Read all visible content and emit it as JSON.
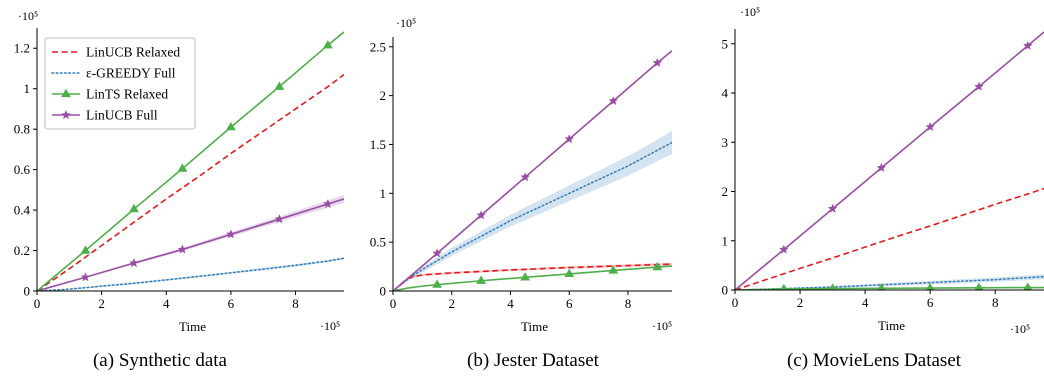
{
  "chart_data": [
    {
      "type": "line",
      "caption": "(a) Synthetic data",
      "xlabel": "Time",
      "x_scale_label": "·10⁵",
      "y_scale_label": "·10⁵",
      "xlim": [
        0,
        9.5
      ],
      "ylim": [
        0,
        1.3
      ],
      "x_ticks": [
        0,
        2,
        4,
        6,
        8
      ],
      "y_ticks": [
        0,
        0.2,
        0.4,
        0.6,
        0.8,
        1,
        1.2
      ],
      "y_tick_labels": [
        "0",
        "0.2",
        "0.4",
        "0.6",
        "0.8",
        "1",
        "1.2"
      ],
      "legend": "top-left",
      "series": [
        {
          "name": "LinUCB Relaxed",
          "color": "#e41a1c",
          "style": "dashed",
          "marker": "none",
          "x": [
            0,
            1,
            2,
            3,
            4,
            5,
            6,
            7,
            8,
            9,
            9.5
          ],
          "y": [
            0,
            0.11,
            0.225,
            0.34,
            0.455,
            0.565,
            0.68,
            0.79,
            0.9,
            1.01,
            1.07
          ]
        },
        {
          "name": "ε-GREEDY Full",
          "color": "#377eb8",
          "style": "dotted",
          "marker": "none",
          "x": [
            0,
            1,
            2,
            3,
            4,
            5,
            6,
            7,
            8,
            9,
            9.5
          ],
          "y": [
            0,
            0.009,
            0.024,
            0.038,
            0.055,
            0.072,
            0.09,
            0.108,
            0.127,
            0.148,
            0.162
          ],
          "band": [
            0.004,
            0.004,
            0.005,
            0.005,
            0.005,
            0.005,
            0.005,
            0.006,
            0.006,
            0.006,
            0.006
          ]
        },
        {
          "name": "LinTS Relaxed",
          "color": "#4daf4a",
          "style": "solid",
          "marker": "triangle",
          "x": [
            0,
            1.5,
            3,
            4.5,
            6,
            7.5,
            9,
            9.5
          ],
          "y": [
            0,
            0.2,
            0.405,
            0.605,
            0.81,
            1.01,
            1.215,
            1.28
          ],
          "markers_x": [
            1.5,
            3,
            4.5,
            6,
            7.5,
            9
          ]
        },
        {
          "name": "LinUCB Full",
          "color": "#984ea3",
          "style": "solid",
          "marker": "star",
          "x": [
            0,
            1.5,
            3,
            4.5,
            6,
            7.5,
            9,
            9.5
          ],
          "y": [
            0,
            0.068,
            0.138,
            0.205,
            0.28,
            0.355,
            0.43,
            0.455
          ],
          "band": [
            0,
            0.003,
            0.005,
            0.008,
            0.011,
            0.014,
            0.018,
            0.02
          ],
          "markers_x": [
            1.5,
            3,
            4.5,
            6,
            7.5,
            9
          ]
        }
      ]
    },
    {
      "type": "line",
      "caption": "(b) Jester Dataset",
      "xlabel": "Time",
      "x_scale_label": "·10⁵",
      "y_scale_label": "·10⁵",
      "xlim": [
        0,
        9.5
      ],
      "ylim": [
        0,
        2.6
      ],
      "x_ticks": [
        0,
        2,
        4,
        6,
        8
      ],
      "y_ticks": [
        0,
        0.5,
        1,
        1.5,
        2,
        2.5
      ],
      "y_tick_labels": [
        "0",
        "0.5",
        "1",
        "1.5",
        "2",
        "2.5"
      ],
      "series": [
        {
          "name": "LinUCB Relaxed",
          "color": "#e41a1c",
          "style": "dashed",
          "marker": "none",
          "x": [
            0,
            0.5,
            1,
            2,
            3,
            4,
            5,
            6,
            7,
            8,
            9,
            9.5
          ],
          "y": [
            0,
            0.13,
            0.165,
            0.185,
            0.2,
            0.215,
            0.228,
            0.24,
            0.25,
            0.26,
            0.27,
            0.275
          ],
          "band": [
            0,
            0.01,
            0.012,
            0.012,
            0.012,
            0.012,
            0.013,
            0.013,
            0.013,
            0.014,
            0.014,
            0.014
          ]
        },
        {
          "name": "ε-GREEDY Full",
          "color": "#377eb8",
          "style": "dotted",
          "marker": "none",
          "x": [
            0,
            0.5,
            1,
            2,
            3,
            4,
            5,
            6,
            7,
            8,
            9,
            9.5
          ],
          "y": [
            0,
            0.12,
            0.22,
            0.4,
            0.56,
            0.72,
            0.86,
            1.0,
            1.14,
            1.28,
            1.44,
            1.52
          ],
          "band": [
            0,
            0.02,
            0.03,
            0.04,
            0.05,
            0.06,
            0.07,
            0.08,
            0.09,
            0.1,
            0.11,
            0.12
          ]
        },
        {
          "name": "LinTS Relaxed",
          "color": "#4daf4a",
          "style": "solid",
          "marker": "triangle",
          "x": [
            0,
            0.5,
            1,
            1.5,
            3,
            4.5,
            6,
            7.5,
            9,
            9.5
          ],
          "y": [
            0,
            0.03,
            0.05,
            0.065,
            0.105,
            0.14,
            0.175,
            0.21,
            0.245,
            0.255
          ],
          "markers_x": [
            1.5,
            3,
            4.5,
            6,
            7.5,
            9
          ]
        },
        {
          "name": "LinUCB Full",
          "color": "#984ea3",
          "style": "solid",
          "marker": "star",
          "x": [
            0,
            1.5,
            3,
            4.5,
            6,
            7.5,
            9,
            9.5
          ],
          "y": [
            0,
            0.385,
            0.775,
            1.165,
            1.555,
            1.945,
            2.335,
            2.46
          ],
          "markers_x": [
            1.5,
            3,
            4.5,
            6,
            7.5,
            9
          ]
        }
      ]
    },
    {
      "type": "line",
      "caption": "(c) MovieLens Dataset",
      "xlabel": "Time",
      "x_scale_label": "·10⁵",
      "y_scale_label": "·10⁵",
      "xlim": [
        0,
        9.5
      ],
      "ylim": [
        0,
        5.3
      ],
      "x_ticks": [
        0,
        2,
        4,
        6,
        8
      ],
      "y_ticks": [
        0,
        1,
        2,
        3,
        4,
        5
      ],
      "y_tick_labels": [
        "0",
        "1",
        "2",
        "3",
        "4",
        "5"
      ],
      "series": [
        {
          "name": "LinUCB Relaxed",
          "color": "#e41a1c",
          "style": "dashed",
          "marker": "none",
          "x": [
            0,
            1,
            2,
            3,
            4,
            5,
            6,
            7,
            8,
            9,
            9.5
          ],
          "y": [
            0,
            0.22,
            0.44,
            0.65,
            0.87,
            1.09,
            1.3,
            1.52,
            1.74,
            1.95,
            2.06
          ]
        },
        {
          "name": "ε-GREEDY Full",
          "color": "#377eb8",
          "style": "dotted",
          "marker": "none",
          "x": [
            0,
            1,
            2,
            3,
            4,
            5,
            6,
            7,
            8,
            9,
            9.5
          ],
          "y": [
            0,
            0.02,
            0.04,
            0.06,
            0.09,
            0.12,
            0.15,
            0.18,
            0.21,
            0.25,
            0.27
          ],
          "band": [
            0,
            0.01,
            0.015,
            0.02,
            0.025,
            0.03,
            0.035,
            0.04,
            0.045,
            0.05,
            0.05
          ]
        },
        {
          "name": "LinTS Relaxed",
          "color": "#4daf4a",
          "style": "solid",
          "marker": "triangle",
          "x": [
            0,
            1.5,
            3,
            4.5,
            6,
            7.5,
            9,
            9.5
          ],
          "y": [
            0,
            0.02,
            0.03,
            0.035,
            0.04,
            0.045,
            0.05,
            0.05
          ],
          "markers_x": [
            1.5,
            3,
            4.5,
            6,
            7.5,
            9
          ]
        },
        {
          "name": "LinUCB Full",
          "color": "#984ea3",
          "style": "solid",
          "marker": "star",
          "x": [
            0,
            1.5,
            3,
            4.5,
            6,
            7.5,
            9,
            9.5
          ],
          "y": [
            0,
            0.82,
            1.65,
            2.48,
            3.31,
            4.13,
            4.96,
            5.24
          ],
          "markers_x": [
            1.5,
            3,
            4.5,
            6,
            7.5,
            9
          ]
        }
      ]
    }
  ],
  "legend": {
    "items": [
      {
        "label": "LinUCB Relaxed",
        "series": 0
      },
      {
        "label": "ε-GREEDY Full",
        "series": 1
      },
      {
        "label": "LinTS Relaxed",
        "series": 2
      },
      {
        "label": "LinUCB Full",
        "series": 3
      }
    ]
  }
}
